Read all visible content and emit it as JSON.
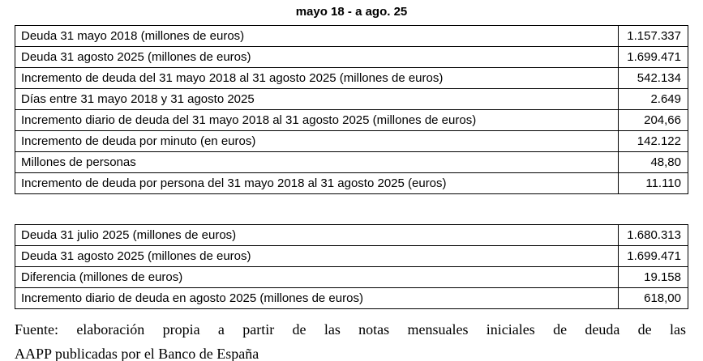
{
  "title": "mayo 18 - a ago. 25",
  "table1": {
    "rows": [
      {
        "label": "Deuda 31 mayo 2018 (millones de euros)",
        "value": "1.157.337"
      },
      {
        "label": "Deuda 31 agosto 2025 (millones de euros)",
        "value": "1.699.471"
      },
      {
        "label": "Incremento de deuda del 31 mayo 2018 al 31 agosto 2025 (millones de euros)",
        "value": "542.134"
      },
      {
        "label": "Días entre 31 mayo 2018 y 31 agosto 2025",
        "value": "2.649"
      },
      {
        "label": "Incremento diario de deuda del 31 mayo 2018 al 31 agosto 2025 (millones de euros)",
        "value": "204,66"
      },
      {
        "label": "Incremento de deuda por minuto (en euros)",
        "value": "142.122"
      },
      {
        "label": "Millones de personas",
        "value": "48,80"
      },
      {
        "label": "Incremento de deuda por persona del 31 mayo 2018 al 31 agosto 2025 (euros)",
        "value": "11.110"
      }
    ]
  },
  "table2": {
    "rows": [
      {
        "label": "Deuda 31 julio 2025 (millones de euros)",
        "value": "1.680.313"
      },
      {
        "label": "Deuda 31 agosto 2025 (millones de euros)",
        "value": "1.699.471"
      },
      {
        "label": "Diferencia (millones de euros)",
        "value": "19.158"
      },
      {
        "label": "Incremento diario de deuda en agosto 2025 (millones de euros)",
        "value": "618,00"
      }
    ]
  },
  "footer": {
    "line1": "Fuente: elaboración propia a partir de las notas mensuales iniciales de deuda de las",
    "line2": "AAPP publicadas por el Banco de España"
  },
  "chart_data": {
    "type": "table",
    "title": "mayo 18 - a ago. 25",
    "tables": [
      {
        "rows": [
          [
            "Deuda 31 mayo 2018 (millones de euros)",
            "1.157.337"
          ],
          [
            "Deuda 31 agosto 2025 (millones de euros)",
            "1.699.471"
          ],
          [
            "Incremento de deuda del 31 mayo 2018 al 31 agosto 2025 (millones de euros)",
            "542.134"
          ],
          [
            "Días entre 31 mayo 2018 y 31 agosto 2025",
            "2.649"
          ],
          [
            "Incremento diario de deuda del 31 mayo 2018 al 31 agosto 2025 (millones de euros)",
            "204,66"
          ],
          [
            "Incremento de deuda por minuto (en euros)",
            "142.122"
          ],
          [
            "Millones de personas",
            "48,80"
          ],
          [
            "Incremento de deuda por persona del 31 mayo 2018 al 31 agosto 2025 (euros)",
            "11.110"
          ]
        ]
      },
      {
        "rows": [
          [
            "Deuda 31 julio 2025 (millones de euros)",
            "1.680.313"
          ],
          [
            "Deuda 31 agosto 2025 (millones de euros)",
            "1.699.471"
          ],
          [
            "Diferencia (millones de euros)",
            "19.158"
          ],
          [
            "Incremento diario de deuda en agosto 2025 (millones de euros)",
            "618,00"
          ]
        ]
      }
    ]
  }
}
